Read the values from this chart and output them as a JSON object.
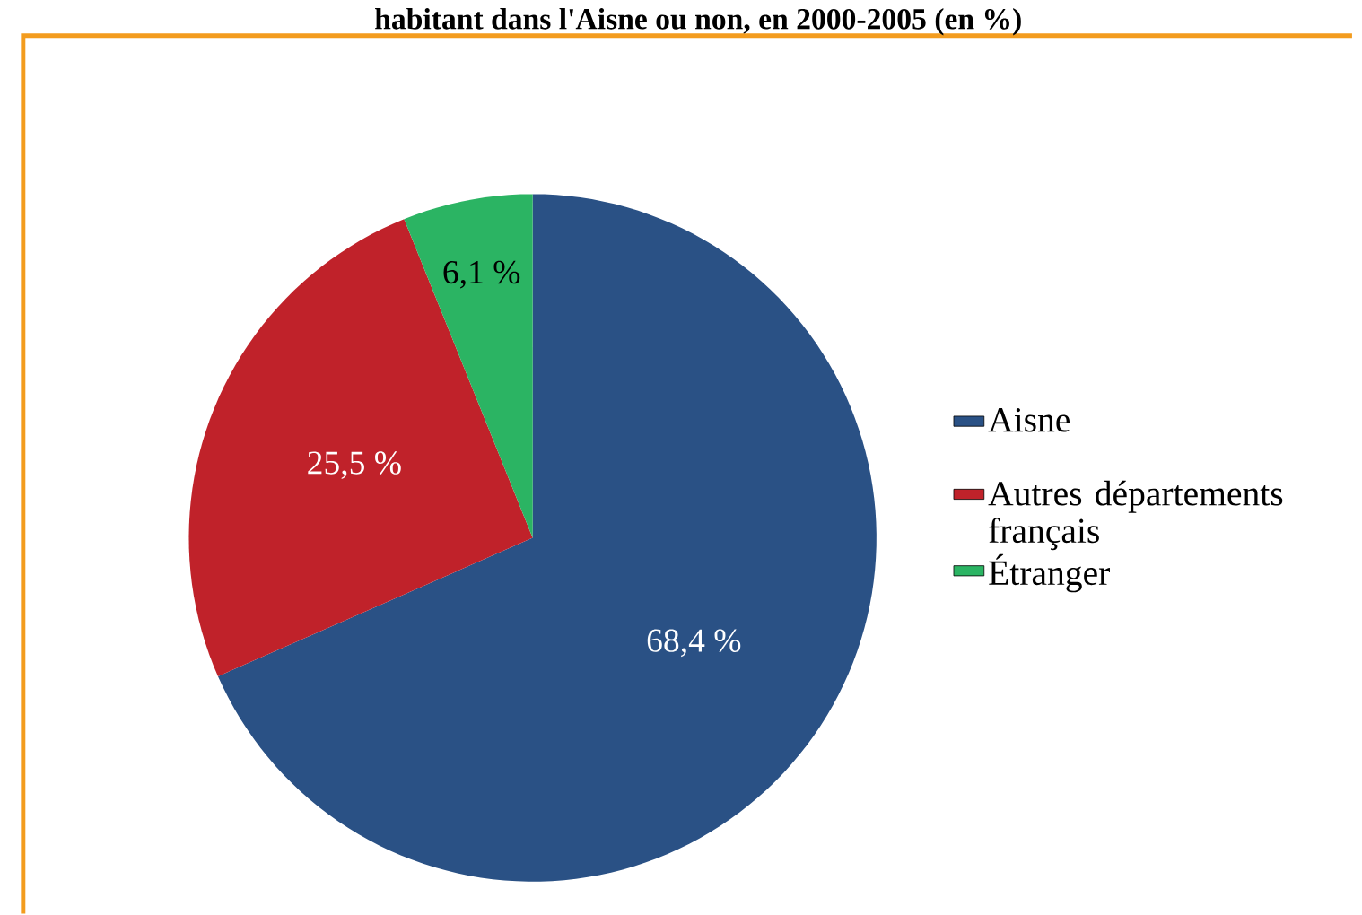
{
  "chart_data": {
    "type": "pie",
    "title": "habitant dans l'Aisne ou non, en 2000-2005 (en %)",
    "categories": [
      "Aisne",
      "Autres départements français",
      "Étranger"
    ],
    "values": [
      68.4,
      25.5,
      6.1
    ],
    "colors": [
      "#2a5185",
      "#c0222a",
      "#2bb463"
    ],
    "value_labels": [
      "68,4 %",
      "25,5 %",
      "6,1 %"
    ],
    "legend": "right"
  }
}
